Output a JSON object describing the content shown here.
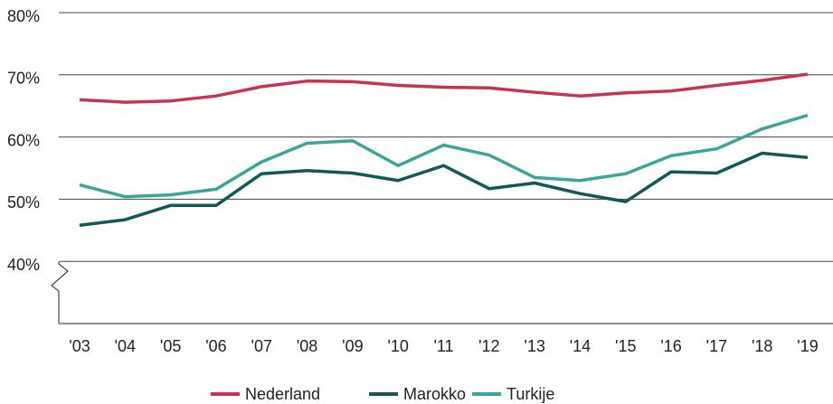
{
  "chart_data": {
    "type": "line",
    "categories": [
      "'03",
      "'04",
      "'05",
      "'06",
      "'07",
      "'08",
      "'09",
      "'10",
      "'11",
      "'12",
      "'13",
      "'14",
      "'15",
      "'16",
      "'17",
      "'18",
      "'19"
    ],
    "series": [
      {
        "name": "Nederland",
        "color": "#c8334f",
        "values": [
          66,
          65.6,
          65.8,
          66.6,
          68.1,
          69,
          68.9,
          68.3,
          68,
          67.9,
          67.2,
          66.6,
          67.1,
          67.4,
          68.3,
          69.1,
          70.1
        ]
      },
      {
        "name": "Marokko",
        "color": "#0f5a55",
        "values": [
          45.8,
          46.7,
          49,
          49,
          54.1,
          54.6,
          54.2,
          53,
          55.4,
          51.7,
          52.6,
          50.9,
          49.6,
          54.4,
          54.2,
          57.4,
          56.7
        ]
      },
      {
        "name": "Turkije",
        "color": "#3aa59a",
        "values": [
          52.3,
          50.4,
          50.7,
          51.6,
          56,
          59,
          59.4,
          55.4,
          58.7,
          57.1,
          53.5,
          53,
          54.1,
          57,
          58.1,
          61.3,
          63.5
        ]
      }
    ],
    "ylim": [
      30,
      80
    ],
    "yticks": [
      {
        "value": 40,
        "label": "40%"
      },
      {
        "value": 50,
        "label": "50%"
      },
      {
        "value": 60,
        "label": "60%"
      },
      {
        "value": 70,
        "label": "70%"
      },
      {
        "value": 80,
        "label": "80%"
      }
    ],
    "grid": true,
    "legend": "bottom"
  }
}
